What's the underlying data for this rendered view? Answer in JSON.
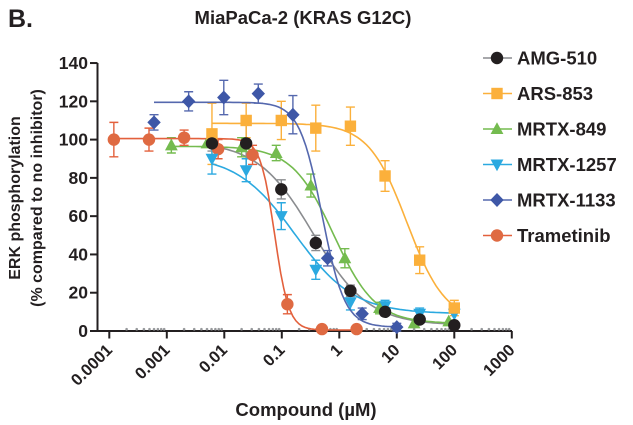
{
  "panel_label": "B.",
  "chart_data": {
    "type": "line",
    "title": "MiaPaCa-2 (KRAS G12C)",
    "xlabel": "Compound (µM)",
    "ylabel_line1": "ERK phosphorylation",
    "ylabel_line2": "(% compared to no inhibitor)",
    "x_scale": "log",
    "xlim": [
      0.0001,
      1000
    ],
    "ylim": [
      0,
      145
    ],
    "x_ticks": [
      0.0001,
      0.001,
      0.01,
      0.1,
      1,
      10,
      100,
      1000
    ],
    "x_tick_labels": [
      "0.0001",
      "0.001",
      "0.01",
      "0.1",
      "1",
      "10",
      "100",
      "1000"
    ],
    "y_ticks": [
      0,
      20,
      40,
      60,
      80,
      100,
      120,
      140
    ],
    "grid": false,
    "legend_position": "right",
    "axis_color": "#231F20",
    "minor_tick_dot_color": "#97999C",
    "series": [
      {
        "name": "AMG-510",
        "marker": "circle",
        "marker_color": "#231F20",
        "line_color": "#8A8C8F",
        "points": [
          [
            0.0061,
            98,
            4
          ],
          [
            0.024,
            98,
            13
          ],
          [
            0.098,
            74,
            5
          ],
          [
            0.39,
            46,
            4
          ],
          [
            1.56,
            21,
            3
          ],
          [
            6.25,
            10,
            2
          ],
          [
            25,
            6,
            2
          ],
          [
            100,
            3,
            0
          ]
        ],
        "curve_fit": {
          "top": 99,
          "bottom": 3,
          "ic50": 0.35,
          "hill": 0.9
        }
      },
      {
        "name": "ARS-853",
        "marker": "square",
        "marker_color": "#FBB03B",
        "line_color": "#FBB03B",
        "points": [
          [
            0.0061,
            103,
            16
          ],
          [
            0.024,
            110,
            9
          ],
          [
            0.098,
            110,
            10
          ],
          [
            0.39,
            106,
            12
          ],
          [
            1.56,
            107,
            10
          ],
          [
            6.25,
            81,
            8
          ],
          [
            25,
            37,
            7
          ],
          [
            100,
            12,
            4
          ]
        ],
        "curve_fit": {
          "top": 108.5,
          "bottom": 5,
          "ic50": 15,
          "hill": 1.3
        }
      },
      {
        "name": "MRTX-849",
        "marker": "triangle-up",
        "marker_color": "#74BB4F",
        "line_color": "#74BB4F",
        "points": [
          [
            0.0012,
            97,
            4
          ],
          [
            0.005,
            98,
            0
          ],
          [
            0.02,
            96,
            5
          ],
          [
            0.08,
            93,
            4
          ],
          [
            0.32,
            76,
            6
          ],
          [
            1.25,
            38,
            5
          ],
          [
            5,
            12,
            3
          ],
          [
            20,
            4,
            2
          ],
          [
            80,
            5,
            0
          ]
        ],
        "curve_fit": {
          "top": 96.5,
          "bottom": 4,
          "ic50": 0.8,
          "hill": 1.2
        }
      },
      {
        "name": "MRTX-1257",
        "marker": "triangle-down",
        "marker_color": "#2BA9E0",
        "line_color": "#2BA9E0",
        "points": [
          [
            0.0061,
            90,
            8
          ],
          [
            0.024,
            84,
            6
          ],
          [
            0.098,
            60,
            7
          ],
          [
            0.39,
            32,
            5
          ],
          [
            1.56,
            15,
            4
          ],
          [
            6.25,
            13,
            3
          ],
          [
            25,
            9,
            3
          ],
          [
            100,
            9,
            0
          ]
        ],
        "curve_fit": {
          "top": 92,
          "bottom": 9,
          "ic50": 0.17,
          "hill": 0.85
        }
      },
      {
        "name": "MRTX-1133",
        "marker": "diamond",
        "marker_color": "#3E57A7",
        "line_color": "#5568AE",
        "points": [
          [
            0.0006,
            109,
            4
          ],
          [
            0.0024,
            120,
            5
          ],
          [
            0.0098,
            122,
            9
          ],
          [
            0.039,
            124,
            5
          ],
          [
            0.156,
            113,
            10
          ],
          [
            0.625,
            38,
            4
          ],
          [
            2.5,
            9,
            3
          ],
          [
            10,
            2,
            2
          ]
        ],
        "curve_fit": {
          "top": 119.5,
          "bottom": 2,
          "ic50": 0.5,
          "hill": 2.2
        }
      },
      {
        "name": "Trametinib",
        "marker": "circle",
        "marker_color": "#DF6A42",
        "line_color": "#E3603C",
        "points": [
          [
            0.00012,
            100,
            9
          ],
          [
            0.00049,
            100,
            6
          ],
          [
            0.002,
            101,
            4
          ],
          [
            0.0078,
            95,
            5
          ],
          [
            0.031,
            92,
            5
          ],
          [
            0.125,
            14,
            5
          ],
          [
            0.5,
            1,
            0
          ],
          [
            2,
            1,
            0
          ]
        ],
        "curve_fit": {
          "top": 100.5,
          "bottom": 0.5,
          "ic50": 0.075,
          "hill": 3.5
        }
      }
    ]
  }
}
